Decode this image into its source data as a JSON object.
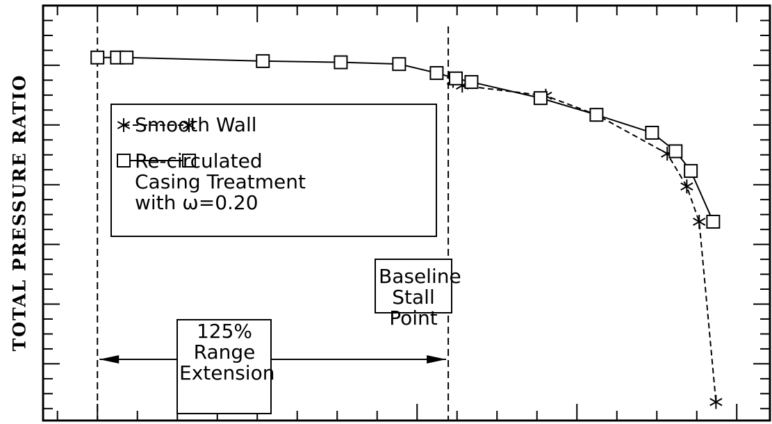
{
  "chart_data": {
    "type": "line",
    "ylabel": "TOTAL PRESSURE RATIO",
    "xlim": [
      -1.36,
      16.83
    ],
    "ylim": [
      -0.95,
      6
    ],
    "xticks": [
      -1,
      0,
      1,
      2,
      3,
      4,
      5,
      6,
      7,
      8,
      9,
      10,
      11,
      12,
      13,
      14,
      15,
      16
    ],
    "yticks": [
      -0.75,
      -0.5,
      -0.25,
      0,
      0.25,
      0.5,
      0.75,
      1,
      1.25,
      1.5,
      1.75,
      2,
      2.25,
      2.5,
      2.75,
      3,
      3.25,
      3.5,
      3.75,
      4,
      4.25,
      4.5,
      4.75,
      5,
      5.25,
      5.5,
      5.75
    ],
    "reference_lines": [
      0,
      8.78
    ],
    "series": [
      {
        "name": "Smooth Wall",
        "color": "#000000",
        "marker": "star",
        "dashed": true,
        "x": [
          8.9,
          9.13,
          11.22,
          12.49,
          14.26,
          14.75,
          15.06,
          15.48
        ],
        "values": [
          4.74,
          4.66,
          4.49,
          4.17,
          3.52,
          2.97,
          2.38,
          -0.64
        ]
      },
      {
        "name": "Re-circulated Casing Treatment with ω=0.20",
        "color": "#000000",
        "marker": "square",
        "dashed": false,
        "x": [
          0,
          0.49,
          0.73,
          4.14,
          6.09,
          7.55,
          8.49,
          8.97,
          9.36,
          11.09,
          12.49,
          13.88,
          14.47,
          14.85,
          15.41
        ],
        "values": [
          5.13,
          5.13,
          5.13,
          5.07,
          5.05,
          5.02,
          4.87,
          4.78,
          4.72,
          4.45,
          4.17,
          3.87,
          3.56,
          3.23,
          2.38
        ]
      }
    ],
    "annotations": [
      "Baseline Stall Point",
      "125% Range Extension"
    ]
  }
}
